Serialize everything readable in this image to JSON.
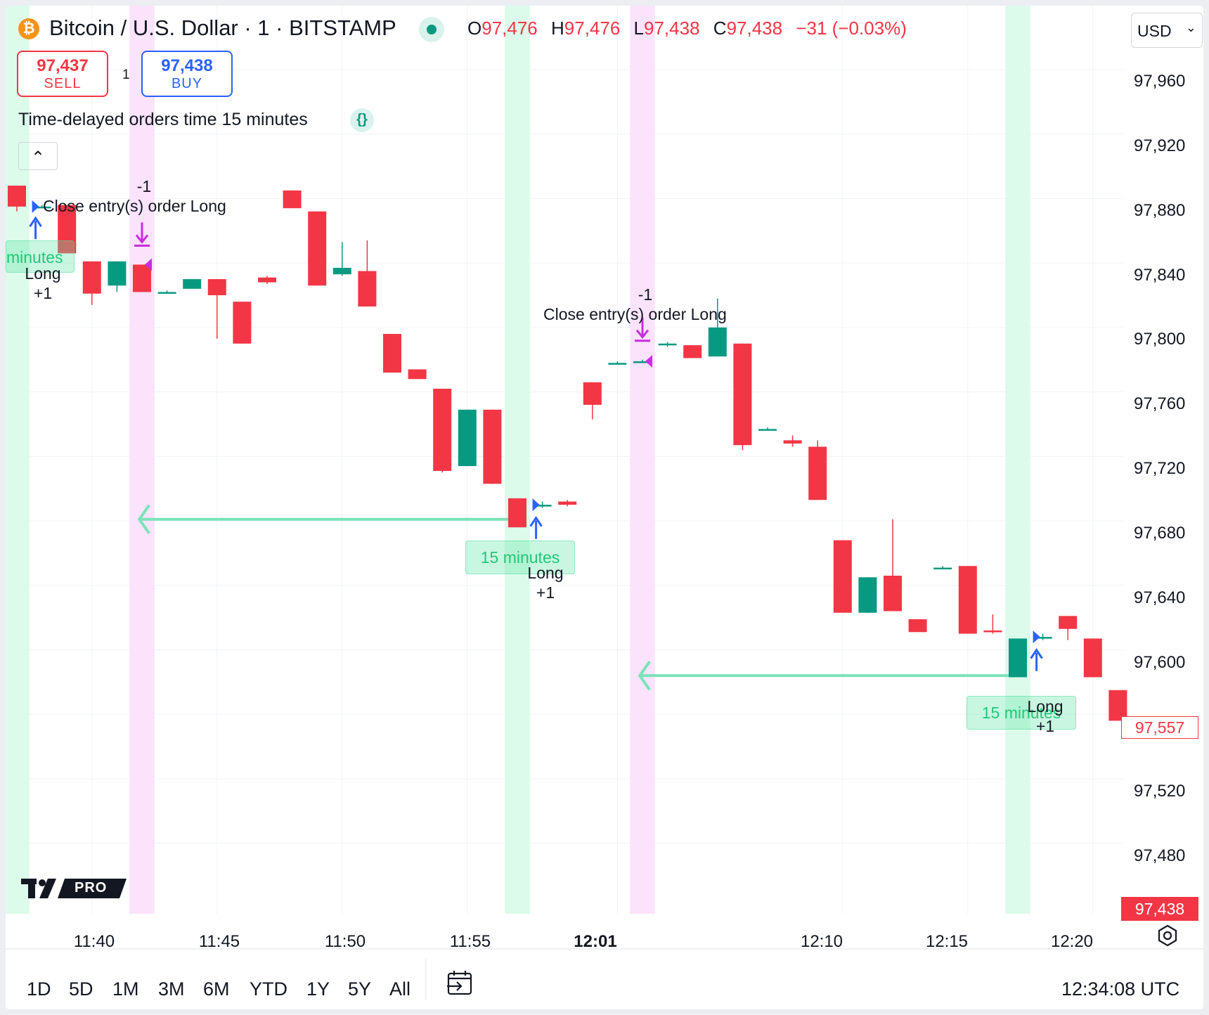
{
  "header": {
    "symbol_title": "Bitcoin / U.S. Dollar · 1 · BITSTAMP",
    "coin_glyph": "₿",
    "ohlc": {
      "o_label": "O",
      "o": "97,476",
      "h_label": "H",
      "h": "97,476",
      "l_label": "L",
      "l": "97,438",
      "c_label": "C",
      "c": "97,438",
      "change": "−31 (−0.03%)"
    },
    "currency": "USD",
    "status_color": "#089981"
  },
  "trading": {
    "sell_price": "97,437",
    "sell_label": "SELL",
    "spread": "1",
    "buy_price": "97,438",
    "buy_label": "BUY"
  },
  "indicator": {
    "title": "Time-delayed orders time 15 minutes",
    "source_glyph": "{}",
    "collapse_glyph": "⌃"
  },
  "price_axis": {
    "labels": [
      "97,960",
      "97,920",
      "97,880",
      "97,840",
      "97,800",
      "97,760",
      "97,720",
      "97,680",
      "97,640",
      "97,600",
      "97,520",
      "97,480"
    ],
    "current_price": "97,557",
    "last_price": "97,438"
  },
  "time_axis": {
    "labels": [
      "11:40",
      "11:45",
      "11:50",
      "11:55",
      "12:01",
      "12:10",
      "12:15",
      "12:20"
    ]
  },
  "annotations": {
    "close_label": "Close entry(s) order Long",
    "close_qty": "-1",
    "long_label": "Long",
    "long_qty": "+1",
    "delay_label": "15 minutes",
    "delay_label_partial": "minutes"
  },
  "range_bar": {
    "ranges": [
      "1D",
      "5D",
      "1M",
      "3M",
      "6M",
      "YTD",
      "1Y",
      "5Y",
      "All"
    ],
    "clock": "12:34:08 UTC"
  },
  "logo": {
    "text": "PRO"
  },
  "colors": {
    "up": "#089981",
    "down": "#f23645",
    "long_bg": "#dcfbea",
    "close_bg": "#fae3fb",
    "arrow": "#7be3b8",
    "entry": "#2962ff",
    "exit": "#c92de0"
  },
  "chart_data": {
    "type": "candlestick",
    "x_unit": "time",
    "candles": [
      {
        "t": "11:37",
        "o": 97888,
        "h": 97888,
        "l": 97872,
        "c": 97875
      },
      {
        "t": "11:38",
        "o": 97875,
        "h": 97876,
        "l": 97874,
        "c": 97875
      },
      {
        "t": "11:39",
        "o": 97876,
        "h": 97876,
        "l": 97846,
        "c": 97846
      },
      {
        "t": "11:40",
        "o": 97841,
        "h": 97841,
        "l": 97814,
        "c": 97821
      },
      {
        "t": "11:41",
        "o": 97826,
        "h": 97841,
        "l": 97822,
        "c": 97841
      },
      {
        "t": "11:42",
        "o": 97839,
        "h": 97839,
        "l": 97822,
        "c": 97822
      },
      {
        "t": "11:43",
        "o": 97822,
        "h": 97823,
        "l": 97821,
        "c": 97822
      },
      {
        "t": "11:44",
        "o": 97824,
        "h": 97830,
        "l": 97824,
        "c": 97830
      },
      {
        "t": "11:45",
        "o": 97830,
        "h": 97830,
        "l": 97793,
        "c": 97820
      },
      {
        "t": "11:46",
        "o": 97816,
        "h": 97816,
        "l": 97790,
        "c": 97790
      },
      {
        "t": "11:47",
        "o": 97831,
        "h": 97832,
        "l": 97827,
        "c": 97828
      },
      {
        "t": "11:48",
        "o": 97885,
        "h": 97885,
        "l": 97874,
        "c": 97874
      },
      {
        "t": "11:49",
        "o": 97872,
        "h": 97872,
        "l": 97826,
        "c": 97826
      },
      {
        "t": "11:50",
        "o": 97833,
        "h": 97853,
        "l": 97832,
        "c": 97837
      },
      {
        "t": "11:51",
        "o": 97835,
        "h": 97854,
        "l": 97813,
        "c": 97813
      },
      {
        "t": "11:52",
        "o": 97796,
        "h": 97796,
        "l": 97772,
        "c": 97772
      },
      {
        "t": "11:53",
        "o": 97774,
        "h": 97774,
        "l": 97768,
        "c": 97768
      },
      {
        "t": "11:54",
        "o": 97762,
        "h": 97762,
        "l": 97710,
        "c": 97711
      },
      {
        "t": "11:55",
        "o": 97714,
        "h": 97749,
        "l": 97714,
        "c": 97749
      },
      {
        "t": "11:56",
        "o": 97749,
        "h": 97749,
        "l": 97703,
        "c": 97703
      },
      {
        "t": "11:57",
        "o": 97694,
        "h": 97694,
        "l": 97676,
        "c": 97676
      },
      {
        "t": "11:58",
        "o": 97690,
        "h": 97692,
        "l": 97688,
        "c": 97690
      },
      {
        "t": "11:59",
        "o": 97692,
        "h": 97693,
        "l": 97689,
        "c": 97690
      },
      {
        "t": "12:00",
        "o": 97766,
        "h": 97766,
        "l": 97743,
        "c": 97752
      },
      {
        "t": "12:01",
        "o": 97778,
        "h": 97779,
        "l": 97777,
        "c": 97778
      },
      {
        "t": "12:02",
        "o": 97779,
        "h": 97780,
        "l": 97778,
        "c": 97779
      },
      {
        "t": "12:03",
        "o": 97790,
        "h": 97791,
        "l": 97788,
        "c": 97790
      },
      {
        "t": "12:04",
        "o": 97789,
        "h": 97789,
        "l": 97781,
        "c": 97781
      },
      {
        "t": "12:05",
        "o": 97782,
        "h": 97818,
        "l": 97782,
        "c": 97800
      },
      {
        "t": "12:06",
        "o": 97790,
        "h": 97790,
        "l": 97724,
        "c": 97727
      },
      {
        "t": "12:07",
        "o": 97737,
        "h": 97738,
        "l": 97736,
        "c": 97737
      },
      {
        "t": "12:08",
        "o": 97730,
        "h": 97733,
        "l": 97726,
        "c": 97728
      },
      {
        "t": "12:09",
        "o": 97726,
        "h": 97730,
        "l": 97693,
        "c": 97693
      },
      {
        "t": "12:10",
        "o": 97668,
        "h": 97668,
        "l": 97623,
        "c": 97623
      },
      {
        "t": "12:11",
        "o": 97623,
        "h": 97645,
        "l": 97623,
        "c": 97645
      },
      {
        "t": "12:12",
        "o": 97646,
        "h": 97681,
        "l": 97624,
        "c": 97624
      },
      {
        "t": "12:13",
        "o": 97619,
        "h": 97619,
        "l": 97611,
        "c": 97611
      },
      {
        "t": "12:14",
        "o": 97651,
        "h": 97652,
        "l": 97650,
        "c": 97651
      },
      {
        "t": "12:15",
        "o": 97652,
        "h": 97652,
        "l": 97610,
        "c": 97610
      },
      {
        "t": "12:16",
        "o": 97612,
        "h": 97622,
        "l": 97610,
        "c": 97611
      },
      {
        "t": "12:17",
        "o": 97583,
        "h": 97607,
        "l": 97583,
        "c": 97607
      },
      {
        "t": "12:18",
        "o": 97608,
        "h": 97610,
        "l": 97606,
        "c": 97608
      },
      {
        "t": "12:19",
        "o": 97621,
        "h": 97621,
        "l": 97606,
        "c": 97613
      },
      {
        "t": "12:20",
        "o": 97607,
        "h": 97607,
        "l": 97583,
        "c": 97583
      },
      {
        "t": "12:21",
        "o": 97575,
        "h": 97575,
        "l": 97556,
        "c": 97556
      }
    ],
    "long_entries": [
      "11:38",
      "11:58",
      "12:18"
    ],
    "close_exits": [
      "11:42",
      "12:02"
    ],
    "ylim": [
      97440,
      97990
    ]
  }
}
